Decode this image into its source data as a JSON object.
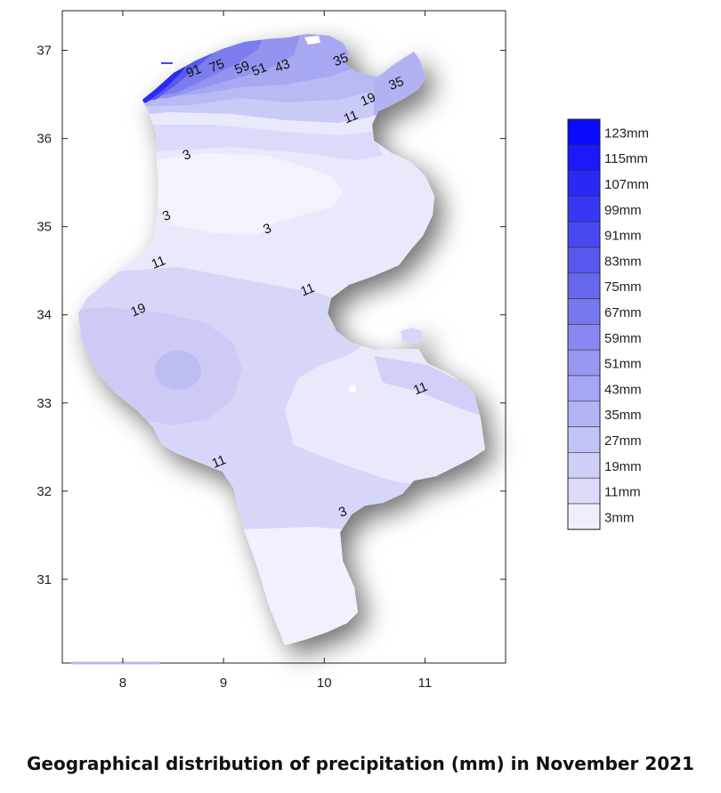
{
  "caption": "Geographical distribution of precipitation (mm) in November 2021",
  "chart_data": {
    "type": "contour-map",
    "xlim": [
      7.4,
      11.8
    ],
    "ylim": [
      30.05,
      37.45
    ],
    "x_ticks": [
      8,
      9,
      10,
      11
    ],
    "y_ticks": [
      31,
      32,
      33,
      34,
      35,
      36,
      37
    ],
    "grid": false,
    "legend_position": "right",
    "legend": [
      {
        "label": "123mm",
        "color": "#0a0aff"
      },
      {
        "label": "115mm",
        "color": "#1919fb"
      },
      {
        "label": "107mm",
        "color": "#2828f7"
      },
      {
        "label": "99mm",
        "color": "#3838f4"
      },
      {
        "label": "91mm",
        "color": "#4848f1"
      },
      {
        "label": "83mm",
        "color": "#5858ee"
      },
      {
        "label": "75mm",
        "color": "#6868ee"
      },
      {
        "label": "67mm",
        "color": "#7878ee"
      },
      {
        "label": "59mm",
        "color": "#8888f0"
      },
      {
        "label": "51mm",
        "color": "#9898f1"
      },
      {
        "label": "43mm",
        "color": "#a6a6f3"
      },
      {
        "label": "35mm",
        "color": "#b4b4f4"
      },
      {
        "label": "27mm",
        "color": "#c2c2f6"
      },
      {
        "label": "19mm",
        "color": "#cfcff7"
      },
      {
        "label": "11mm",
        "color": "#dcdcf9"
      },
      {
        "label": "3mm",
        "color": "#efeffc"
      }
    ],
    "contour_labels": [
      {
        "text": "91",
        "lon": 8.72,
        "lat": 36.72
      },
      {
        "text": "75",
        "lon": 8.95,
        "lat": 36.78
      },
      {
        "text": "59",
        "lon": 9.2,
        "lat": 36.76
      },
      {
        "text": "51",
        "lon": 9.37,
        "lat": 36.74
      },
      {
        "text": "43",
        "lon": 9.6,
        "lat": 36.78
      },
      {
        "text": "35",
        "lon": 10.18,
        "lat": 36.85
      },
      {
        "text": "35",
        "lon": 10.73,
        "lat": 36.58
      },
      {
        "text": "19",
        "lon": 10.45,
        "lat": 36.4
      },
      {
        "text": "11",
        "lon": 10.28,
        "lat": 36.2
      },
      {
        "text": "3",
        "lon": 8.65,
        "lat": 35.77
      },
      {
        "text": "3",
        "lon": 8.45,
        "lat": 35.08
      },
      {
        "text": "3",
        "lon": 9.45,
        "lat": 34.93
      },
      {
        "text": "11",
        "lon": 8.37,
        "lat": 34.55
      },
      {
        "text": "11",
        "lon": 9.85,
        "lat": 34.24
      },
      {
        "text": "19",
        "lon": 8.17,
        "lat": 34.01
      },
      {
        "text": "11",
        "lon": 10.97,
        "lat": 33.12
      },
      {
        "text": "11",
        "lon": 8.97,
        "lat": 32.29
      },
      {
        "text": "3",
        "lon": 10.2,
        "lat": 31.72
      }
    ]
  }
}
